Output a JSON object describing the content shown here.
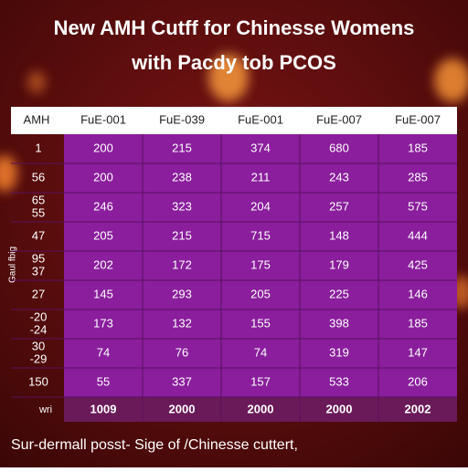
{
  "header": {
    "title": [
      "New AMH Cutff for Chinesse Womens",
      "with Pacdy tob PCOS"
    ]
  },
  "table": {
    "columns": [
      "AMH",
      "FuE-001",
      "FuE-039",
      "FuE-001",
      "FuE-007",
      "FuE-007"
    ],
    "rows": [
      {
        "label": [
          "1"
        ],
        "values": [
          200,
          215,
          374,
          680,
          185
        ]
      },
      {
        "label": [
          "56"
        ],
        "values": [
          200,
          238,
          211,
          243,
          285
        ]
      },
      {
        "label": [
          "65",
          "55"
        ],
        "values": [
          246,
          323,
          204,
          257,
          575
        ]
      },
      {
        "label": [
          "47"
        ],
        "values": [
          205,
          215,
          715,
          148,
          444
        ]
      },
      {
        "label": [
          "95",
          "37"
        ],
        "values": [
          202,
          172,
          175,
          179,
          425
        ]
      },
      {
        "label": [
          "27"
        ],
        "values": [
          145,
          293,
          205,
          225,
          146
        ]
      },
      {
        "label": [
          "-20",
          "-24"
        ],
        "values": [
          173,
          132,
          155,
          398,
          185
        ]
      },
      {
        "label": [
          "30",
          "-29"
        ],
        "values": [
          74,
          76,
          74,
          319,
          147
        ]
      },
      {
        "label": [
          "150"
        ],
        "values": [
          55,
          337,
          157,
          533,
          206
        ]
      }
    ],
    "footer": {
      "label": "wri",
      "values": [
        1009,
        2000,
        2000,
        2000,
        2002
      ]
    },
    "side_label": "Gaul fbig"
  },
  "caption": "Sur-dermall posst- Sige of /Chinesse cuttert,"
}
